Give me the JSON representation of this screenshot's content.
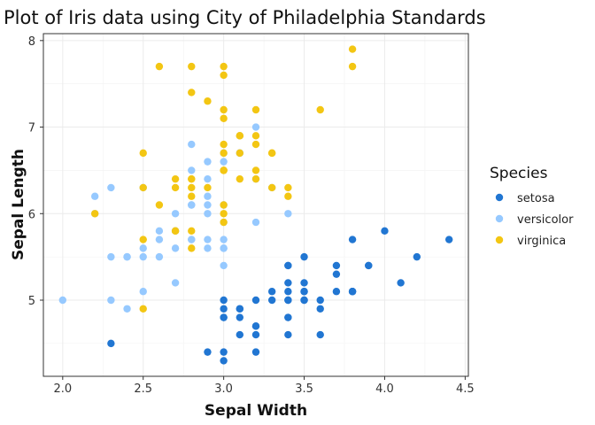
{
  "chart_data": {
    "type": "scatter",
    "title": "Plot of Iris data using City of Philadelphia Standards",
    "xlabel": "Sepal Width",
    "ylabel": "Sepal Length",
    "xlim": [
      1.88,
      4.52
    ],
    "ylim": [
      4.12,
      8.08
    ],
    "x_ticks": [
      2.0,
      2.5,
      3.0,
      3.5,
      4.0,
      4.5
    ],
    "x_tick_labels": [
      "2.0",
      "2.5",
      "3.0",
      "3.5",
      "4.0",
      "4.5"
    ],
    "y_ticks": [
      5,
      6,
      7,
      8
    ],
    "y_tick_labels": [
      "5",
      "6",
      "7",
      "8"
    ],
    "grid": true,
    "legend": {
      "title": "Species",
      "position": "right"
    },
    "series": [
      {
        "name": "setosa",
        "color": "#2176D2",
        "points": [
          [
            3.5,
            5.1
          ],
          [
            3.0,
            4.9
          ],
          [
            3.2,
            4.7
          ],
          [
            3.1,
            4.6
          ],
          [
            3.6,
            5.0
          ],
          [
            3.9,
            5.4
          ],
          [
            3.4,
            4.6
          ],
          [
            3.4,
            5.0
          ],
          [
            2.9,
            4.4
          ],
          [
            3.1,
            4.9
          ],
          [
            3.7,
            5.4
          ],
          [
            3.4,
            4.8
          ],
          [
            3.0,
            4.8
          ],
          [
            3.0,
            4.3
          ],
          [
            4.0,
            5.8
          ],
          [
            4.4,
            5.7
          ],
          [
            3.9,
            5.4
          ],
          [
            3.5,
            5.1
          ],
          [
            3.8,
            5.7
          ],
          [
            3.8,
            5.1
          ],
          [
            3.4,
            5.4
          ],
          [
            3.7,
            5.1
          ],
          [
            3.6,
            4.6
          ],
          [
            3.3,
            5.1
          ],
          [
            3.4,
            4.8
          ],
          [
            3.0,
            5.0
          ],
          [
            3.4,
            5.0
          ],
          [
            3.5,
            5.2
          ],
          [
            3.4,
            5.2
          ],
          [
            3.2,
            4.7
          ],
          [
            3.1,
            4.8
          ],
          [
            3.4,
            5.4
          ],
          [
            4.1,
            5.2
          ],
          [
            4.2,
            5.5
          ],
          [
            3.1,
            4.9
          ],
          [
            3.2,
            5.0
          ],
          [
            3.5,
            5.5
          ],
          [
            3.6,
            4.9
          ],
          [
            3.0,
            4.4
          ],
          [
            3.4,
            5.1
          ],
          [
            3.5,
            5.0
          ],
          [
            2.3,
            4.5
          ],
          [
            3.2,
            4.4
          ],
          [
            3.5,
            5.0
          ],
          [
            3.8,
            5.1
          ],
          [
            3.0,
            4.8
          ],
          [
            3.8,
            5.1
          ],
          [
            3.2,
            4.6
          ],
          [
            3.7,
            5.3
          ],
          [
            3.3,
            5.0
          ]
        ]
      },
      {
        "name": "versicolor",
        "color": "#96C9FF",
        "points": [
          [
            3.2,
            7.0
          ],
          [
            3.2,
            6.4
          ],
          [
            3.1,
            6.9
          ],
          [
            2.3,
            5.5
          ],
          [
            2.8,
            6.5
          ],
          [
            2.8,
            5.7
          ],
          [
            3.3,
            6.3
          ],
          [
            2.4,
            4.9
          ],
          [
            2.9,
            6.6
          ],
          [
            2.7,
            5.2
          ],
          [
            2.0,
            5.0
          ],
          [
            3.0,
            5.9
          ],
          [
            2.2,
            6.0
          ],
          [
            2.9,
            6.1
          ],
          [
            2.9,
            5.6
          ],
          [
            3.1,
            6.7
          ],
          [
            3.0,
            5.6
          ],
          [
            2.7,
            5.8
          ],
          [
            2.2,
            6.2
          ],
          [
            2.5,
            5.6
          ],
          [
            3.2,
            5.9
          ],
          [
            2.8,
            6.1
          ],
          [
            2.5,
            6.3
          ],
          [
            2.8,
            6.1
          ],
          [
            2.9,
            6.4
          ],
          [
            3.0,
            6.6
          ],
          [
            2.8,
            6.8
          ],
          [
            3.0,
            6.7
          ],
          [
            2.9,
            6.0
          ],
          [
            2.6,
            5.7
          ],
          [
            2.4,
            5.5
          ],
          [
            2.4,
            5.5
          ],
          [
            2.7,
            5.8
          ],
          [
            2.7,
            6.0
          ],
          [
            3.0,
            5.4
          ],
          [
            3.4,
            6.0
          ],
          [
            3.1,
            6.7
          ],
          [
            2.3,
            6.3
          ],
          [
            3.0,
            5.6
          ],
          [
            2.5,
            5.5
          ],
          [
            2.6,
            5.5
          ],
          [
            3.0,
            6.1
          ],
          [
            2.6,
            5.8
          ],
          [
            2.3,
            5.0
          ],
          [
            2.7,
            5.6
          ],
          [
            3.0,
            5.7
          ],
          [
            2.9,
            5.7
          ],
          [
            2.9,
            6.2
          ],
          [
            2.5,
            5.1
          ],
          [
            2.8,
            5.7
          ]
        ]
      },
      {
        "name": "virginica",
        "color": "#F3C613",
        "points": [
          [
            3.3,
            6.3
          ],
          [
            2.7,
            5.8
          ],
          [
            3.0,
            7.1
          ],
          [
            2.9,
            6.3
          ],
          [
            3.0,
            6.5
          ],
          [
            3.0,
            7.6
          ],
          [
            2.5,
            4.9
          ],
          [
            2.9,
            7.3
          ],
          [
            2.5,
            6.7
          ],
          [
            3.6,
            7.2
          ],
          [
            3.2,
            6.5
          ],
          [
            2.7,
            6.4
          ],
          [
            3.0,
            6.8
          ],
          [
            2.5,
            5.7
          ],
          [
            2.8,
            5.8
          ],
          [
            3.2,
            6.4
          ],
          [
            3.0,
            6.5
          ],
          [
            3.8,
            7.7
          ],
          [
            2.6,
            7.7
          ],
          [
            2.2,
            6.0
          ],
          [
            3.2,
            6.9
          ],
          [
            2.8,
            5.6
          ],
          [
            2.8,
            7.7
          ],
          [
            2.7,
            6.3
          ],
          [
            3.3,
            6.7
          ],
          [
            3.2,
            7.2
          ],
          [
            2.8,
            6.2
          ],
          [
            3.0,
            6.1
          ],
          [
            2.8,
            6.4
          ],
          [
            3.0,
            7.2
          ],
          [
            2.8,
            7.4
          ],
          [
            3.8,
            7.9
          ],
          [
            2.8,
            6.4
          ],
          [
            2.8,
            6.3
          ],
          [
            2.6,
            6.1
          ],
          [
            3.0,
            7.7
          ],
          [
            3.4,
            6.3
          ],
          [
            3.1,
            6.4
          ],
          [
            3.0,
            6.0
          ],
          [
            3.1,
            6.9
          ],
          [
            3.1,
            6.7
          ],
          [
            3.1,
            6.9
          ],
          [
            2.7,
            5.8
          ],
          [
            3.2,
            6.8
          ],
          [
            3.3,
            6.7
          ],
          [
            3.0,
            6.7
          ],
          [
            2.5,
            6.3
          ],
          [
            3.0,
            6.5
          ],
          [
            3.4,
            6.2
          ],
          [
            3.0,
            5.9
          ]
        ]
      }
    ]
  }
}
